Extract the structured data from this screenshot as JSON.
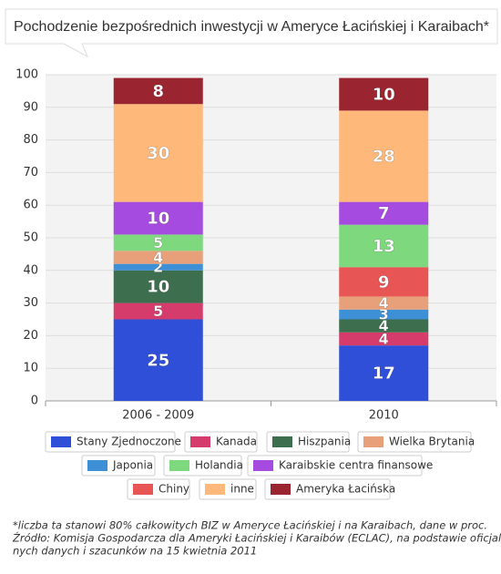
{
  "chart_data": {
    "type": "stacked_bar",
    "title": "Pochodzenie bezpośrednich inwestycji w Ameryce Łacińskiej i Karaibach*",
    "categories": [
      "2006 - 2009",
      "2010"
    ],
    "ylim": [
      0,
      100
    ],
    "yticks": [
      0,
      10,
      20,
      30,
      40,
      50,
      60,
      70,
      80,
      90,
      100
    ],
    "grid": true,
    "series": [
      {
        "name": "Stany Zjednoczone",
        "color": "#2f4fd8",
        "values": [
          25,
          17
        ]
      },
      {
        "name": "Kanada",
        "color": "#d63c6b",
        "values": [
          5,
          4
        ]
      },
      {
        "name": "Hiszpania",
        "color": "#3d6e4e",
        "values": [
          10,
          4
        ]
      },
      {
        "name": "Japonia",
        "color": "#3d8fd6",
        "values": [
          2,
          3
        ]
      },
      {
        "name": "Wielka Brytania",
        "color": "#e8a07a",
        "values": [
          4,
          4
        ]
      },
      {
        "name": "Chiny",
        "color": "#e85555",
        "values": [
          null,
          9
        ]
      },
      {
        "name": "Holandia",
        "color": "#7ed87e",
        "values": [
          5,
          13
        ]
      },
      {
        "name": "Karaibskie centra finansowe",
        "color": "#a64be0",
        "values": [
          10,
          7
        ]
      },
      {
        "name": "inne",
        "color": "#fdb87a",
        "values": [
          30,
          28
        ]
      },
      {
        "name": "Ameryka Łacińska",
        "color": "#9a2430",
        "values": [
          8,
          10
        ]
      }
    ],
    "notes": [
      "*liczba ta stanowi 80% całkowitych BIZ w Ameryce Łacińskiej i na Karaibach, dane w proc.",
      "Źródło: Komisja Gospodarcza dla Ameryki Łacińskiej i Karaibów (ECLAC), na podstawie oficjal-",
      "nych danych i szacunków na 15 kwietnia 2011"
    ]
  }
}
